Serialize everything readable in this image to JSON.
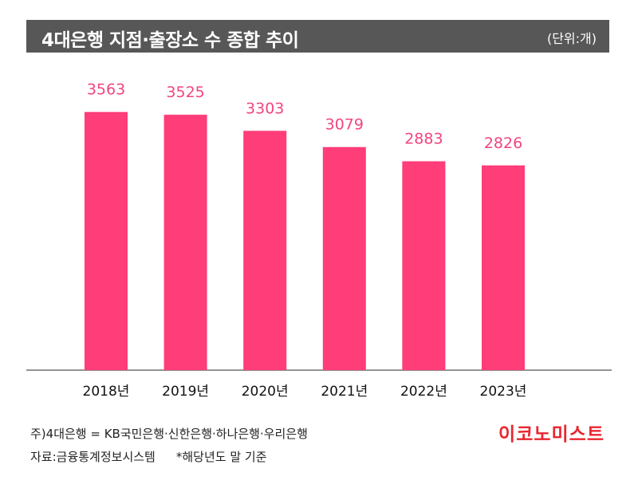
{
  "header": {
    "title": "4대은행 지점·출장소 수 종합 추이",
    "unit": "(단위:개)"
  },
  "chart_data": {
    "type": "bar",
    "title": "4대은행 지점·출장소 수 종합 추이",
    "xlabel": "",
    "ylabel": "",
    "categories": [
      "2018년",
      "2019년",
      "2020년",
      "2021년",
      "2022년",
      "2023년"
    ],
    "values": [
      3563,
      3525,
      3303,
      3079,
      2883,
      2826
    ],
    "ylim": [
      0,
      3900
    ],
    "grid": false,
    "bar_color": "#ff3d78",
    "label_color": "#f2457e",
    "baseline_color": "#555555"
  },
  "footer": {
    "note_line1": "주)4대은행 = KB국민은행·신한은행·하나은행·우리은행",
    "source": "자료:금융통계정보시스템",
    "note": "*해당년도 말 기준",
    "logo": "이코노미스트"
  },
  "colors": {
    "header_bg": "#575757",
    "logo": "#e8272f"
  }
}
